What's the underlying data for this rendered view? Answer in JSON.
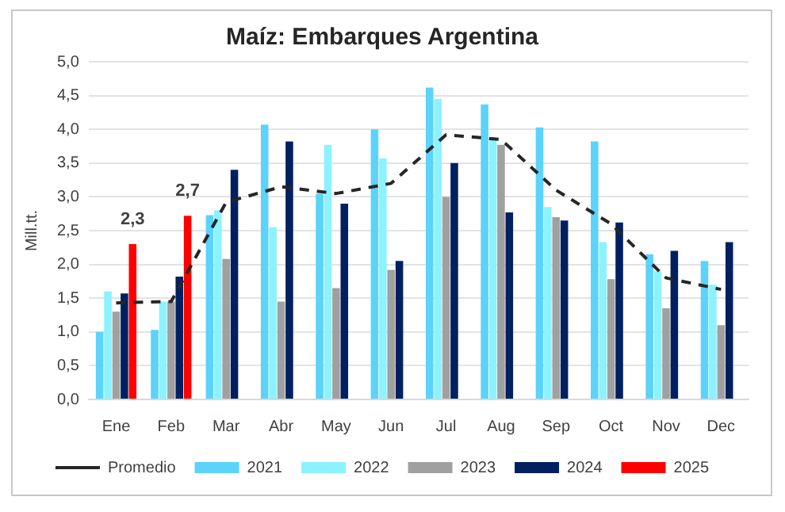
{
  "chart_data": {
    "type": "bar",
    "title": "Maíz: Embarques Argentina",
    "ylabel": "Mill.tt.",
    "categories": [
      "Ene",
      "Feb",
      "Mar",
      "Abr",
      "May",
      "Jun",
      "Jul",
      "Aug",
      "Sep",
      "Oct",
      "Nov",
      "Dec"
    ],
    "series": [
      {
        "name": "2021",
        "color": "#5bd3fb",
        "values": [
          1.0,
          1.03,
          2.73,
          4.07,
          3.05,
          4.0,
          4.62,
          4.37,
          4.03,
          3.82,
          2.15,
          2.05
        ]
      },
      {
        "name": "2022",
        "color": "#8cf2ff",
        "values": [
          1.6,
          1.45,
          2.8,
          2.55,
          3.77,
          3.57,
          4.45,
          3.87,
          2.85,
          2.33,
          1.9,
          1.7
        ]
      },
      {
        "name": "2023",
        "color": "#a0a0a0",
        "values": [
          1.3,
          1.45,
          2.08,
          1.45,
          1.65,
          1.92,
          3.0,
          3.77,
          2.7,
          1.78,
          1.35,
          1.1
        ]
      },
      {
        "name": "2024",
        "color": "#002060",
        "values": [
          1.57,
          1.82,
          3.4,
          3.82,
          2.9,
          2.05,
          3.5,
          2.77,
          2.65,
          2.62,
          2.2,
          2.33
        ]
      },
      {
        "name": "2025",
        "color": "#ff0000",
        "values": [
          2.3,
          2.72,
          null,
          null,
          null,
          null,
          null,
          null,
          null,
          null,
          null,
          null
        ],
        "value_labels": [
          "2,3",
          "2,7",
          null,
          null,
          null,
          null,
          null,
          null,
          null,
          null,
          null,
          null
        ]
      },
      {
        "name": "Promedio",
        "type": "line",
        "color": "#262626",
        "line_style": "dashed",
        "values": [
          1.43,
          1.45,
          2.92,
          3.15,
          3.05,
          3.2,
          3.92,
          3.85,
          3.1,
          2.6,
          1.8,
          1.63
        ]
      }
    ],
    "ylim": [
      0,
      5
    ],
    "yticks": [
      {
        "value": 0,
        "label": "0,0"
      },
      {
        "value": 0.5,
        "label": "0,5"
      },
      {
        "value": 1,
        "label": "1,0"
      },
      {
        "value": 1.5,
        "label": "1,5"
      },
      {
        "value": 2,
        "label": "2,0"
      },
      {
        "value": 2.5,
        "label": "2,5"
      },
      {
        "value": 3,
        "label": "3,0"
      },
      {
        "value": 3.5,
        "label": "3,5"
      },
      {
        "value": 4,
        "label": "4,0"
      },
      {
        "value": 4.5,
        "label": "4,5"
      },
      {
        "value": 5,
        "label": "5,0"
      }
    ],
    "grid": "y",
    "legend": "bottom",
    "marker": "none"
  }
}
